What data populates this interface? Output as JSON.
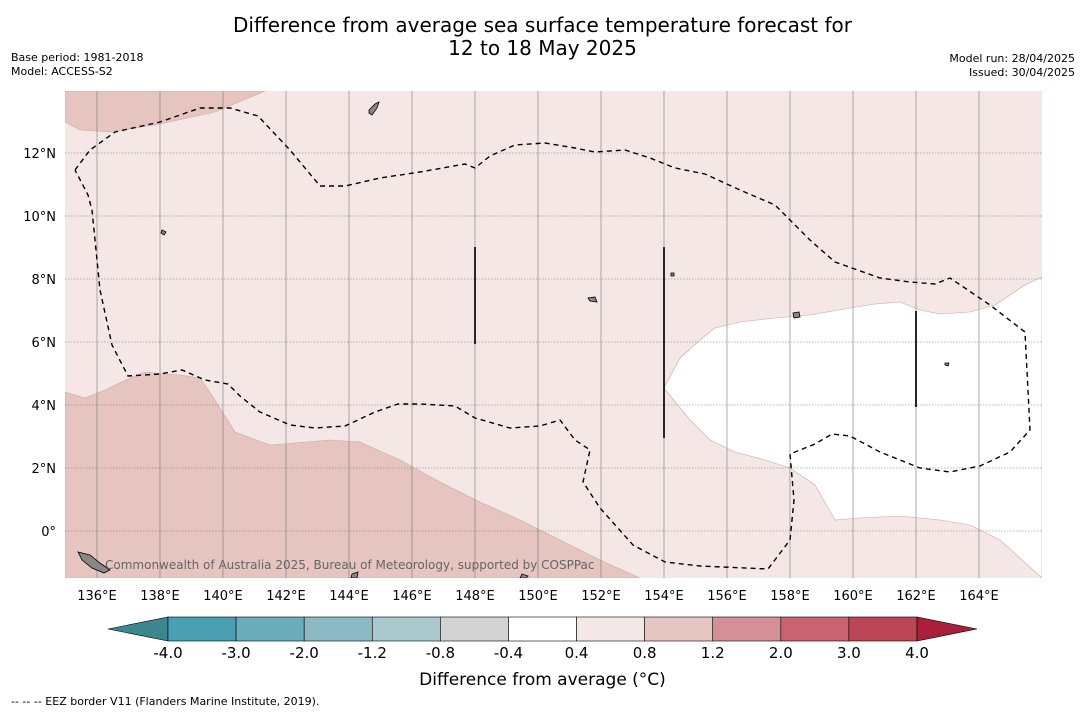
{
  "title_line1": "Difference from average sea surface temperature forecast for",
  "title_line2": "12 to 18 May 2025",
  "meta": {
    "base_period": "Base period: 1981-2018",
    "model": "Model: ACCESS-S2",
    "model_run": "Model run: 28/04/2025",
    "issued": "Issued: 30/04/2025"
  },
  "map": {
    "lon_labels": [
      "136°E",
      "138°E",
      "140°E",
      "142°E",
      "144°E",
      "146°E",
      "148°E",
      "150°E",
      "152°E",
      "154°E",
      "156°E",
      "158°E",
      "160°E",
      "162°E",
      "164°E"
    ],
    "lat_labels": [
      "12°N",
      "10°N",
      "8°N",
      "6°N",
      "4°N",
      "2°N",
      "0°"
    ],
    "copyright": "Commonwealth of Australia 2025, Bureau of Meteorology, supported by COSPPac"
  },
  "colorbar": {
    "ticks": [
      "-4.0",
      "-3.0",
      "-2.0",
      "-1.2",
      "-0.8",
      "-0.4",
      "0.4",
      "0.8",
      "1.2",
      "2.0",
      "3.0",
      "4.0"
    ],
    "colors": [
      "#4aa0b2",
      "#6aaebc",
      "#8bbac5",
      "#a9c9cd",
      "#d3d3d3",
      "#ffffff",
      "#f5e7e5",
      "#e6c4bf",
      "#d58f96",
      "#c96370",
      "#bd4656"
    ],
    "under_color": "#3c8690",
    "over_color": "#a81e3b",
    "title": "Difference from average (°C)"
  },
  "footnote": "-- -- -- EEZ border V11 (Flanders Marine Institute, 2019)."
}
